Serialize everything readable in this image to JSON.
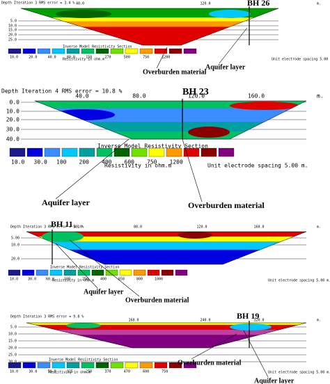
{
  "panels": [
    {
      "header": "Depth  Iteration 3 RMS error = 3.4 %",
      "borehole": "BH 26",
      "x_ticks": [
        "40.0",
        "120.0"
      ],
      "unit": "m.",
      "depths": [
        "5.0",
        "10.0",
        "15.0",
        "20.0",
        "25.0"
      ],
      "legend_title": "Inverse Model Resistivity Section",
      "legend_labels": [
        "10.0",
        "20.0",
        "40.0",
        "80.0",
        "150",
        "270",
        "500",
        "750",
        "1200"
      ],
      "resistivity_label": "Resistivity in ohm.m",
      "spacing_label": "Unit electrode spacing 5.00 m.",
      "annotations": [
        "Overburden material",
        "Aquifer layer"
      ]
    },
    {
      "header": "Depth   Iteration 4 RMS error = 10.8 %",
      "borehole": "BH 23",
      "x_ticks": [
        "40.0",
        "80.0",
        "120.0",
        "160.0"
      ],
      "unit": "m.",
      "depths": [
        "0.0",
        "10.0",
        "20.0",
        "30.0",
        "40.0"
      ],
      "legend_title": "Inverse Model Resistivity Section",
      "legend_labels": [
        "10.0",
        "30.0",
        "100",
        "200",
        "400",
        "600",
        "750",
        "1200"
      ],
      "resistivity_label": "Resistivity in ohm.m",
      "spacing_label": "Unit electrode spacing 5.00 m.",
      "annotations": [
        "Aquifer layer",
        "Overburden material"
      ]
    },
    {
      "header": "Depth  Iteration 3 RMS error = 5.1 %",
      "borehole": "BH 11",
      "x_ticks": [
        "40.0",
        "80.0",
        "120.0",
        "160.0"
      ],
      "unit": "m.",
      "depths": [
        "5.00",
        "10.0",
        "20.0"
      ],
      "legend_title": "Inverse Model Resistivity Section",
      "legend_labels": [
        "10.0",
        "30.0",
        "60.0",
        "100",
        "250",
        "400",
        "650",
        "800",
        "1000"
      ],
      "resistivity_label": "Resistivity in ohm.m",
      "spacing_label": "Unit electrode spacing 5.00 m.",
      "annotations": [
        "Aquifer layer",
        "Overburden material"
      ]
    },
    {
      "header": "Depth  Iteration 3 RMS error = 9.8 %",
      "borehole": "BH 19",
      "x_ticks": [
        "160.0",
        "240.0",
        "320.0"
      ],
      "unit": "m.",
      "depths": [
        "5.0",
        "10.0",
        "15.0",
        "20.0",
        "25.0",
        "30.0"
      ],
      "legend_title": "Inverse Model Resistivity Section",
      "legend_labels": [
        "10.0",
        "30.0",
        "50.0",
        "125",
        "250",
        "370",
        "470",
        "600",
        "750"
      ],
      "resistivity_label": "Resistivity in ohm.m",
      "spacing_label": "Unit electrode spacing 5.00 m.",
      "annotations": [
        "Overburden material",
        "Aquifer layer"
      ]
    }
  ]
}
